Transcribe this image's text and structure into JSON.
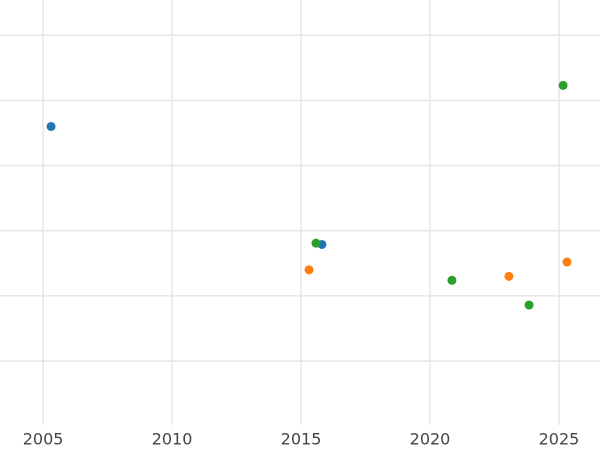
{
  "chart_data": {
    "type": "scatter",
    "xlim": [
      2003.33,
      2026.59
    ],
    "xticks": [
      2005,
      2010,
      2015,
      2020,
      2025
    ],
    "ylim": [
      -0.98,
      5.54
    ],
    "ygrid": [
      0,
      1,
      2,
      3,
      4,
      5
    ],
    "grid": true,
    "series": [
      {
        "color": "#1f77b4",
        "x": [
          2005.31,
          2015.81
        ],
        "values": [
          3.6,
          1.79
        ]
      },
      {
        "color": "#ff7f0e",
        "x": [
          2015.31,
          2023.06,
          2025.31
        ],
        "values": [
          1.4,
          1.3,
          1.52
        ]
      },
      {
        "color": "#2ca02c",
        "x": [
          2015.58,
          2020.85,
          2023.84,
          2025.16
        ],
        "values": [
          1.81,
          1.24,
          0.86,
          4.23
        ]
      }
    ]
  }
}
